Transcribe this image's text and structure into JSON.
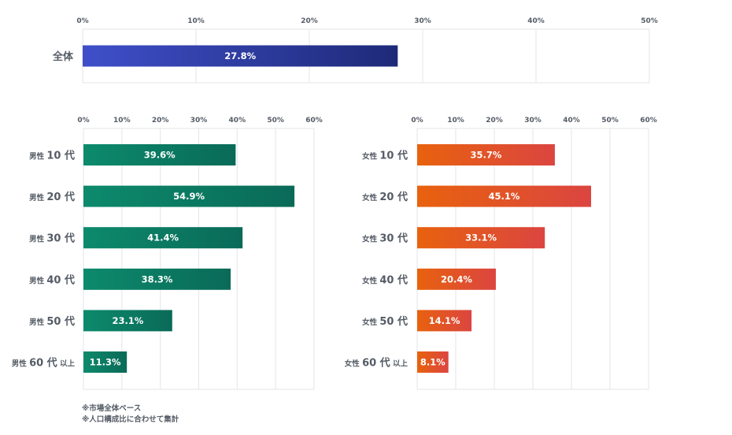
{
  "colors": {
    "overall_start": "#3f4fc9",
    "overall_end": "#1e2a78",
    "male_start": "#0c8a6c",
    "male_end": "#0a6a58",
    "female_start": "#e8620e",
    "female_end": "#db4540"
  },
  "chart_data": [
    {
      "type": "bar",
      "orientation": "horizontal",
      "categories": [
        "全体"
      ],
      "values": [
        27.8
      ],
      "value_labels": [
        "27.8%"
      ],
      "xlim": [
        0,
        50
      ],
      "ticks": [
        "0%",
        "10%",
        "20%",
        "30%",
        "40%",
        "50%"
      ],
      "tick_values": [
        0,
        10,
        20,
        30,
        40,
        50
      ],
      "grid": true
    },
    {
      "type": "bar",
      "orientation": "horizontal",
      "categories": [
        {
          "main": "男性",
          "age": "10 代",
          "suffix": ""
        },
        {
          "main": "男性",
          "age": "20 代",
          "suffix": ""
        },
        {
          "main": "男性",
          "age": "30 代",
          "suffix": ""
        },
        {
          "main": "男性",
          "age": "40 代",
          "suffix": ""
        },
        {
          "main": "男性",
          "age": "50 代",
          "suffix": ""
        },
        {
          "main": "男性",
          "age": "60 代",
          "suffix": "以上"
        }
      ],
      "values": [
        39.6,
        54.9,
        41.4,
        38.3,
        23.1,
        11.3
      ],
      "value_labels": [
        "39.6%",
        "54.9%",
        "41.4%",
        "38.3%",
        "23.1%",
        "11.3%"
      ],
      "xlim": [
        0,
        60
      ],
      "ticks": [
        "0%",
        "10%",
        "20%",
        "30%",
        "40%",
        "50%",
        "60%"
      ],
      "tick_values": [
        0,
        10,
        20,
        30,
        40,
        50,
        60
      ],
      "grid": true
    },
    {
      "type": "bar",
      "orientation": "horizontal",
      "categories": [
        {
          "main": "女性",
          "age": "10 代",
          "suffix": ""
        },
        {
          "main": "女性",
          "age": "20 代",
          "suffix": ""
        },
        {
          "main": "女性",
          "age": "30 代",
          "suffix": ""
        },
        {
          "main": "女性",
          "age": "40 代",
          "suffix": ""
        },
        {
          "main": "女性",
          "age": "50 代",
          "suffix": ""
        },
        {
          "main": "女性",
          "age": "60 代",
          "suffix": "以上"
        }
      ],
      "values": [
        35.7,
        45.1,
        33.1,
        20.4,
        14.1,
        8.1
      ],
      "value_labels": [
        "35.7%",
        "45.1%",
        "33.1%",
        "20.4%",
        "14.1%",
        "8.1%"
      ],
      "xlim": [
        0,
        60
      ],
      "ticks": [
        "0%",
        "10%",
        "20%",
        "30%",
        "40%",
        "50%",
        "60%"
      ],
      "tick_values": [
        0,
        10,
        20,
        30,
        40,
        50,
        60
      ],
      "grid": true
    }
  ],
  "footnotes": [
    "※市場全体ベース",
    "※人口構成比に合わせて集計"
  ]
}
